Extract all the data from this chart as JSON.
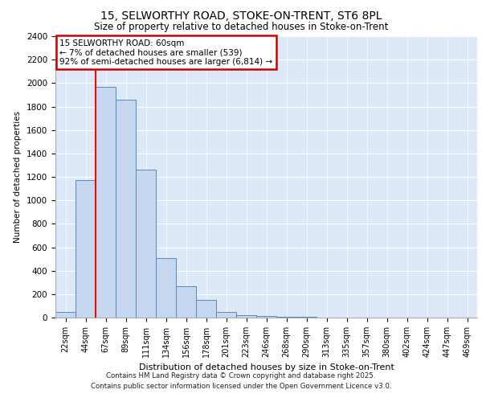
{
  "title1": "15, SELWORTHY ROAD, STOKE-ON-TRENT, ST6 8PL",
  "title2": "Size of property relative to detached houses in Stoke-on-Trent",
  "xlabel": "Distribution of detached houses by size in Stoke-on-Trent",
  "ylabel": "Number of detached properties",
  "categories": [
    "22sqm",
    "44sqm",
    "67sqm",
    "89sqm",
    "111sqm",
    "134sqm",
    "156sqm",
    "178sqm",
    "201sqm",
    "223sqm",
    "246sqm",
    "268sqm",
    "290sqm",
    "313sqm",
    "335sqm",
    "357sqm",
    "380sqm",
    "402sqm",
    "424sqm",
    "447sqm",
    "469sqm"
  ],
  "values": [
    50,
    1170,
    1970,
    1860,
    1260,
    510,
    270,
    150,
    50,
    22,
    12,
    6,
    5,
    3,
    2,
    1,
    1,
    0,
    0,
    0,
    0
  ],
  "bar_color": "#c5d8f0",
  "bar_edge_color": "#5588bb",
  "red_line_x": 1.5,
  "annotation_text": "15 SELWORTHY ROAD: 60sqm\n← 7% of detached houses are smaller (539)\n92% of semi-detached houses are larger (6,814) →",
  "annotation_box_color": "#ffffff",
  "annotation_box_edge": "#cc0000",
  "bg_color": "#dde8f8",
  "ylim": [
    0,
    2400
  ],
  "yticks": [
    0,
    200,
    400,
    600,
    800,
    1000,
    1200,
    1400,
    1600,
    1800,
    2000,
    2200,
    2400
  ],
  "footer1": "Contains HM Land Registry data © Crown copyright and database right 2025.",
  "footer2": "Contains public sector information licensed under the Open Government Licence v3.0."
}
